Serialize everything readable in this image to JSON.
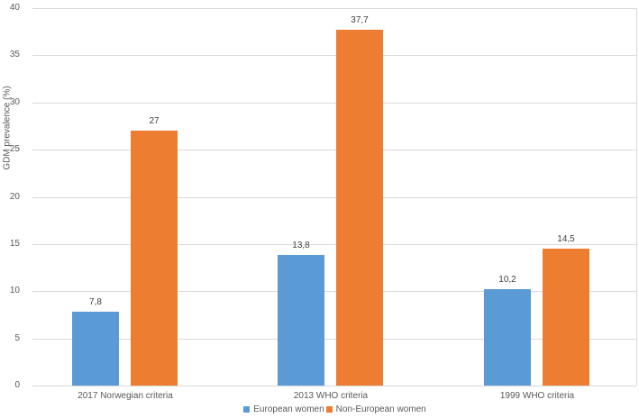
{
  "chart_data": {
    "type": "bar",
    "title": "",
    "xlabel": "",
    "ylabel": "GDM prevalence (%)",
    "categories": [
      "2017 Norwegian criteria",
      "2013 WHO criteria",
      "1999 WHO criteria"
    ],
    "series": [
      {
        "name": "European women",
        "color": "#5b9bd5",
        "values": [
          7.8,
          13.8,
          10.2
        ],
        "value_labels": [
          "7,8",
          "13,8",
          "10,2"
        ]
      },
      {
        "name": "Non-European women",
        "color": "#ed7d31",
        "values": [
          27,
          37.7,
          14.5
        ],
        "value_labels": [
          "27",
          "37,7",
          "14,5"
        ]
      }
    ],
    "ylim": [
      0,
      40
    ],
    "ytick_step": 5,
    "yticks": [
      "0",
      "5",
      "10",
      "15",
      "20",
      "25",
      "30",
      "35",
      "40"
    ],
    "grid": true,
    "legend_position": "bottom",
    "gridline_color": "#d9d9d9",
    "text_color": "#595959",
    "value_label_color": "#404040",
    "background_color": "#ffffff"
  }
}
